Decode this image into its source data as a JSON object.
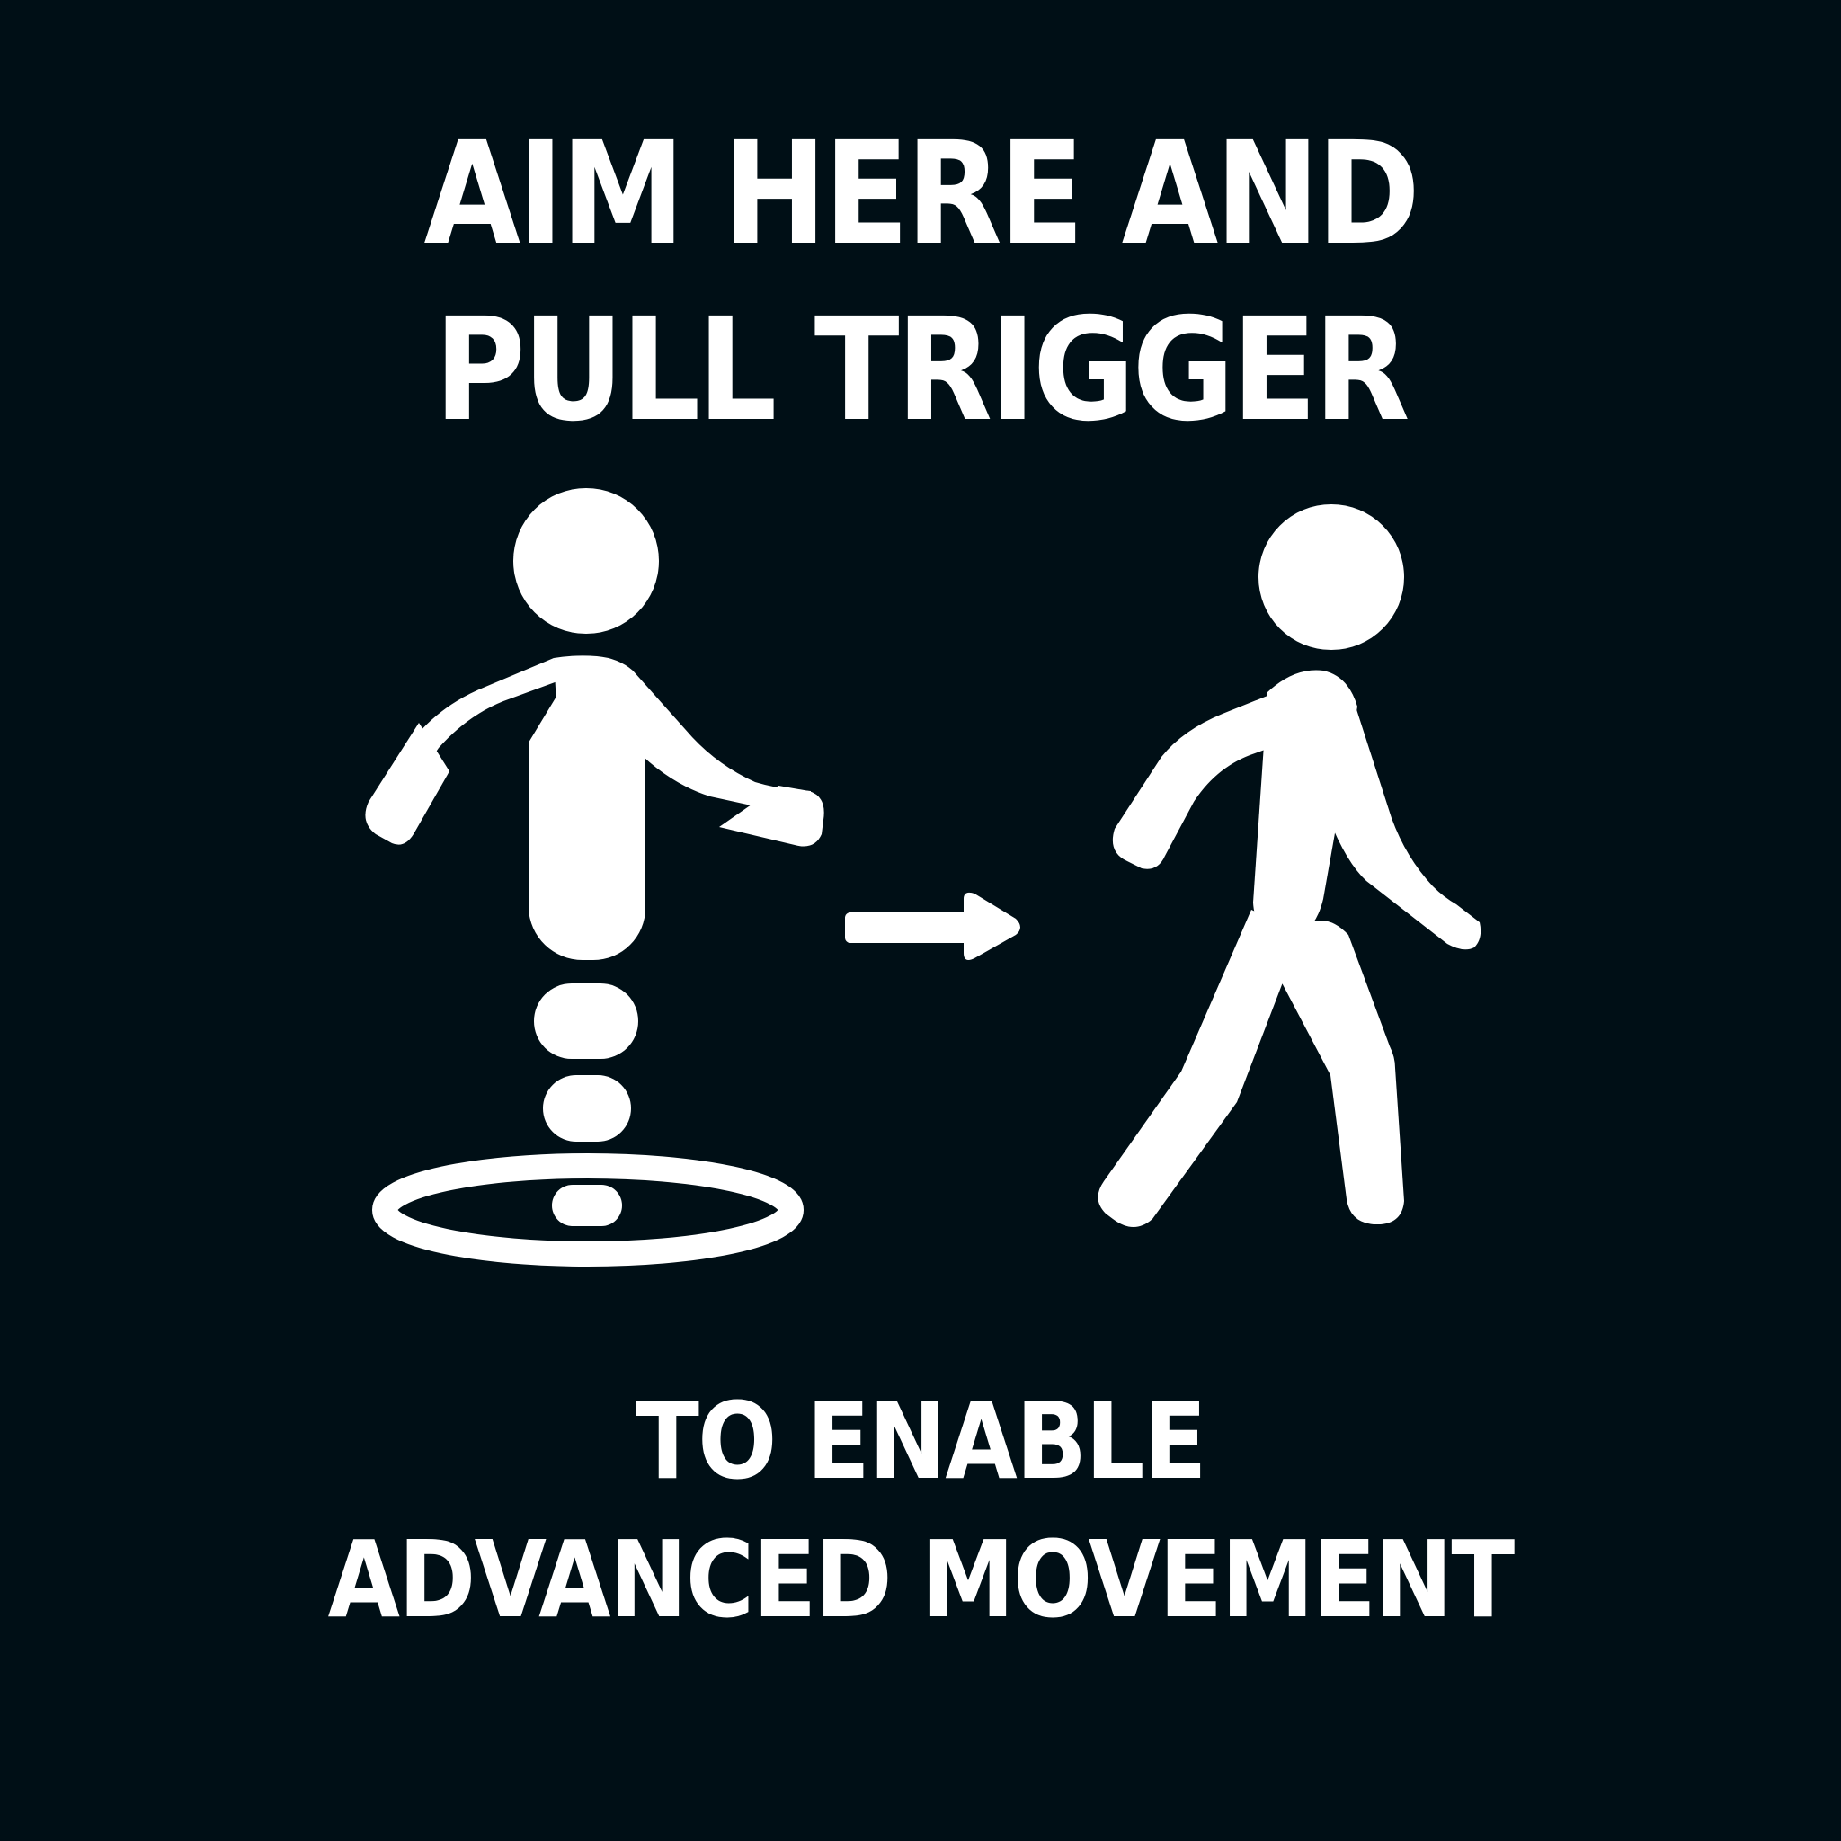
{
  "sign": {
    "instruction_lines": [
      "AIM HERE AND",
      "PULL TRIGGER"
    ],
    "result_lines": [
      "TO ENABLE",
      "ADVANCED MOVEMENT"
    ]
  },
  "colors": {
    "background": "#000f16",
    "foreground": "#ffffff"
  },
  "icons": {
    "left_figure": "teleport-person-icon",
    "arrow": "arrow-right-icon",
    "right_figure": "walking-person-icon"
  }
}
